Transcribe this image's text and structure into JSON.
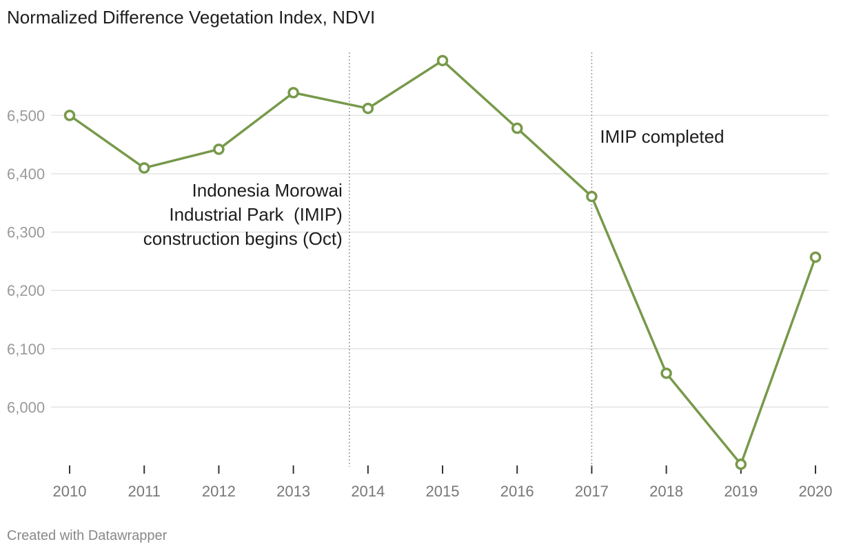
{
  "chart_data": {
    "type": "line",
    "title": "Normalized Difference Vegetation Index, NDVI",
    "xlabel": "",
    "ylabel": "",
    "x": [
      "2010",
      "2011",
      "2012",
      "2013",
      "2014",
      "2015",
      "2016",
      "2017",
      "2018",
      "2019",
      "2020"
    ],
    "series": [
      {
        "name": "NDVI",
        "color": "#77994a",
        "values": [
          6500,
          6410,
          6442,
          6539,
          6512,
          6594,
          6478,
          6361,
          6058,
          5902,
          6257
        ]
      }
    ],
    "yticks": [
      {
        "value": 6000,
        "label": "6,000"
      },
      {
        "value": 6100,
        "label": "6,100"
      },
      {
        "value": 6200,
        "label": "6,200"
      },
      {
        "value": 6300,
        "label": "6,300"
      },
      {
        "value": 6400,
        "label": "6,400"
      },
      {
        "value": 6500,
        "label": "6,500"
      }
    ],
    "ylim": [
      5900,
      6608
    ],
    "grid": true,
    "annotations": [
      {
        "x_value": 2013.75,
        "lines": [
          "Indonesia Morowai",
          "Industrial Park  (IMIP)",
          "construction begins (Oct)"
        ],
        "align": "left-of-line"
      },
      {
        "x_value": 2017,
        "lines": [
          "IMIP completed"
        ],
        "align": "right-of-line"
      }
    ]
  },
  "footer": {
    "credit": "Created with Datawrapper"
  }
}
